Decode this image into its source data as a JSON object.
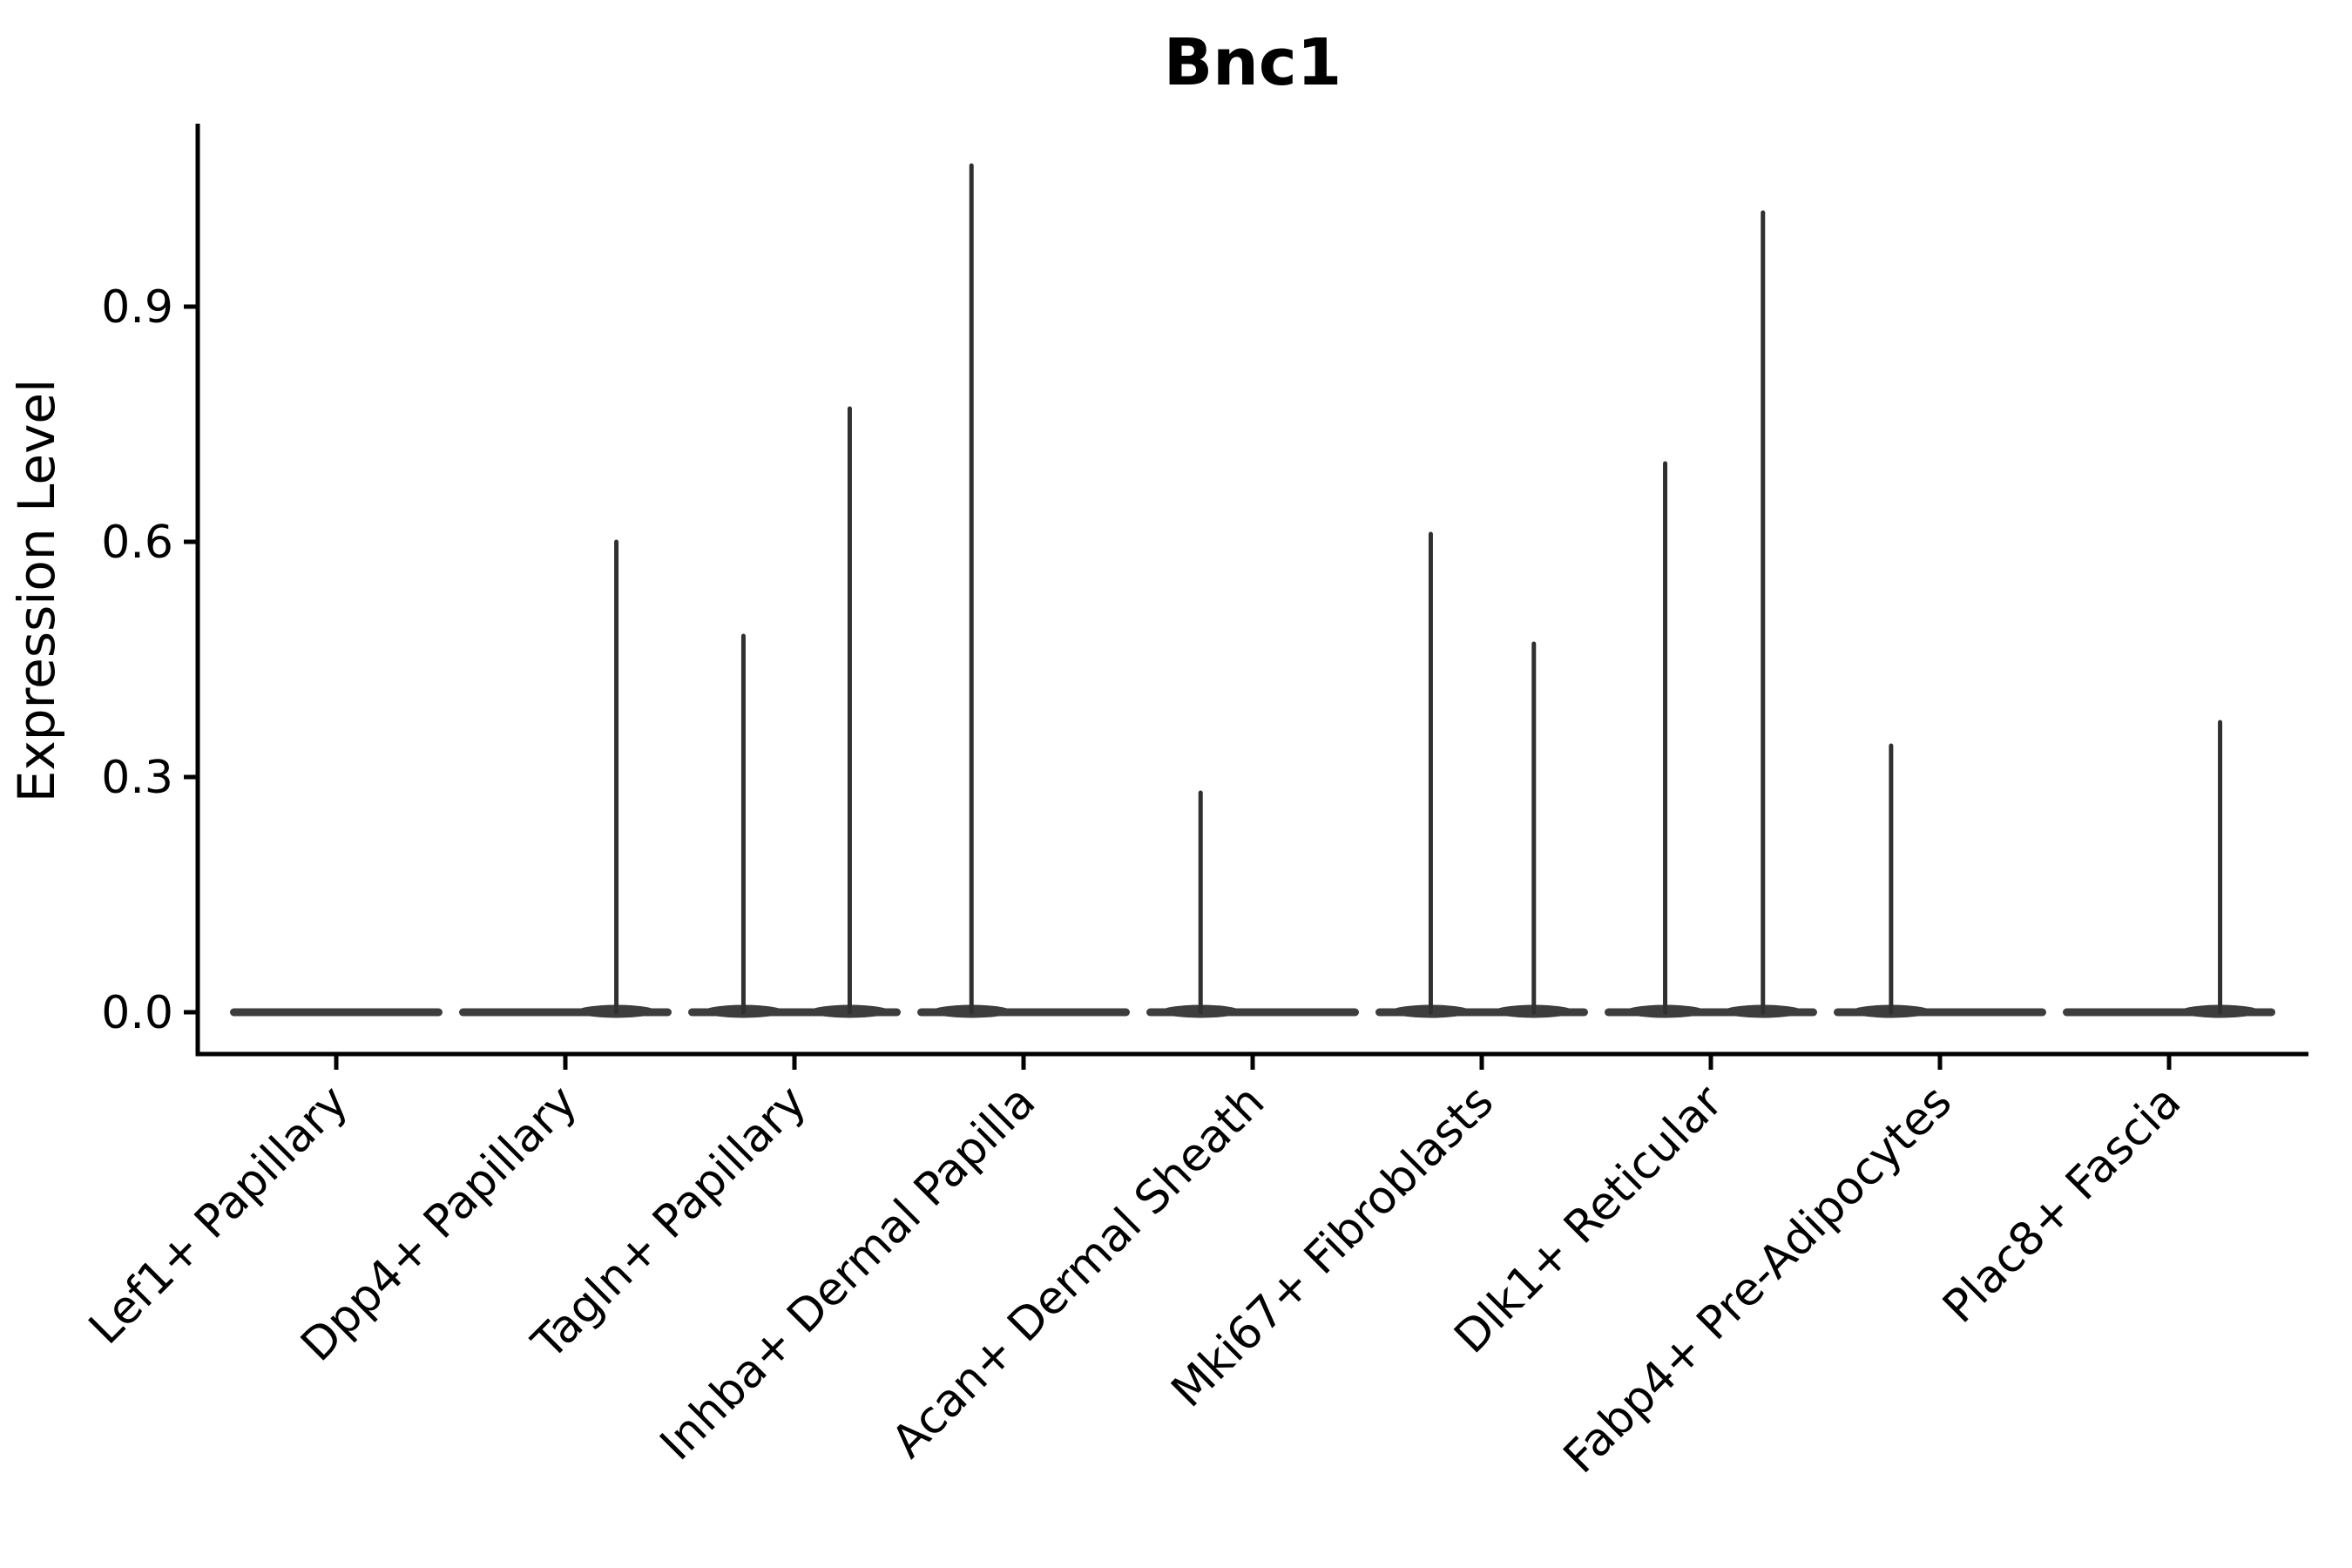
{
  "chart_data": {
    "type": "violin",
    "title": "Bnc1",
    "ylabel": "Expression Level",
    "xlabel": "",
    "ylim": [
      -0.052,
      1.135
    ],
    "grid": false,
    "legend": false,
    "colors": {
      "violin_fill": "#3d3d3d",
      "spike_stroke": "#303030",
      "axis": "#000000",
      "background": "#ffffff"
    },
    "yticks": [
      {
        "value": 0.0,
        "label": "0.0"
      },
      {
        "value": 0.3,
        "label": "0.3"
      },
      {
        "value": 0.6,
        "label": "0.6"
      },
      {
        "value": 0.9,
        "label": "0.9"
      }
    ],
    "categories": [
      {
        "label": "Lef1+ Papillary",
        "spikes": []
      },
      {
        "label": "Dpp4+ Papillary",
        "spikes": [
          {
            "value": 0.6,
            "offset": 0.48
          }
        ]
      },
      {
        "label": "Tagln+ Papillary",
        "spikes": [
          {
            "value": 0.48,
            "offset": -0.48
          },
          {
            "value": 0.77,
            "offset": 0.52
          }
        ]
      },
      {
        "label": "Inhba+ Dermal Papilla",
        "spikes": [
          {
            "value": 1.08,
            "offset": -0.49
          }
        ]
      },
      {
        "label": "Acan+ Dermal Sheath",
        "spikes": [
          {
            "value": 0.28,
            "offset": -0.49
          }
        ]
      },
      {
        "label": "Mki67+ Fibroblasts",
        "spikes": [
          {
            "value": 0.61,
            "offset": -0.48
          },
          {
            "value": 0.47,
            "offset": 0.49
          }
        ]
      },
      {
        "label": "Dlk1+ Reticular",
        "spikes": [
          {
            "value": 0.7,
            "offset": -0.43
          },
          {
            "value": 1.02,
            "offset": 0.49
          }
        ]
      },
      {
        "label": "Fabp4+ Pre-Adipocytes",
        "spikes": [
          {
            "value": 0.34,
            "offset": -0.46
          }
        ]
      },
      {
        "label": "Plac8+ Fascia",
        "spikes": [
          {
            "value": 0.37,
            "offset": 0.48
          }
        ]
      }
    ]
  }
}
